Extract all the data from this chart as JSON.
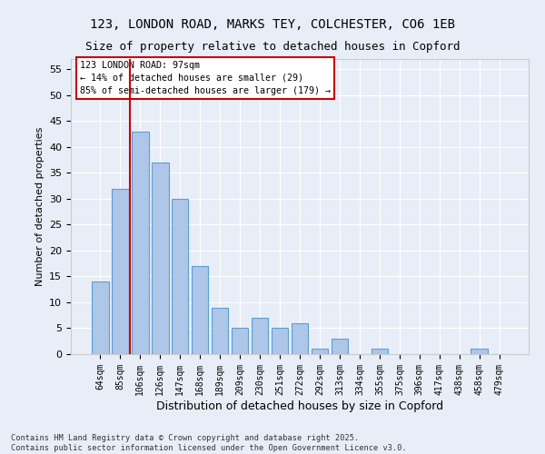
{
  "title_line1": "123, LONDON ROAD, MARKS TEY, COLCHESTER, CO6 1EB",
  "title_line2": "Size of property relative to detached houses in Copford",
  "xlabel": "Distribution of detached houses by size in Copford",
  "ylabel": "Number of detached properties",
  "categories": [
    "64sqm",
    "85sqm",
    "106sqm",
    "126sqm",
    "147sqm",
    "168sqm",
    "189sqm",
    "209sqm",
    "230sqm",
    "251sqm",
    "272sqm",
    "292sqm",
    "313sqm",
    "334sqm",
    "355sqm",
    "375sqm",
    "396sqm",
    "417sqm",
    "438sqm",
    "458sqm",
    "479sqm"
  ],
  "values": [
    14,
    32,
    43,
    37,
    30,
    17,
    9,
    5,
    7,
    5,
    6,
    1,
    3,
    0,
    1,
    0,
    0,
    0,
    0,
    1,
    0
  ],
  "bar_color": "#aec6e8",
  "bar_edge_color": "#5a9fd4",
  "vline_color": "#cc0000",
  "annotation_title": "123 LONDON ROAD: 97sqm",
  "annotation_line2": "← 14% of detached houses are smaller (29)",
  "annotation_line3": "85% of semi-detached houses are larger (179) →",
  "annotation_box_color": "#ffffff",
  "annotation_box_edge": "#cc0000",
  "ylim": [
    0,
    57
  ],
  "yticks": [
    0,
    5,
    10,
    15,
    20,
    25,
    30,
    35,
    40,
    45,
    50,
    55
  ],
  "footer_line1": "Contains HM Land Registry data © Crown copyright and database right 2025.",
  "footer_line2": "Contains public sector information licensed under the Open Government Licence v3.0.",
  "bg_color": "#e8eef7",
  "grid_color": "#ffffff"
}
